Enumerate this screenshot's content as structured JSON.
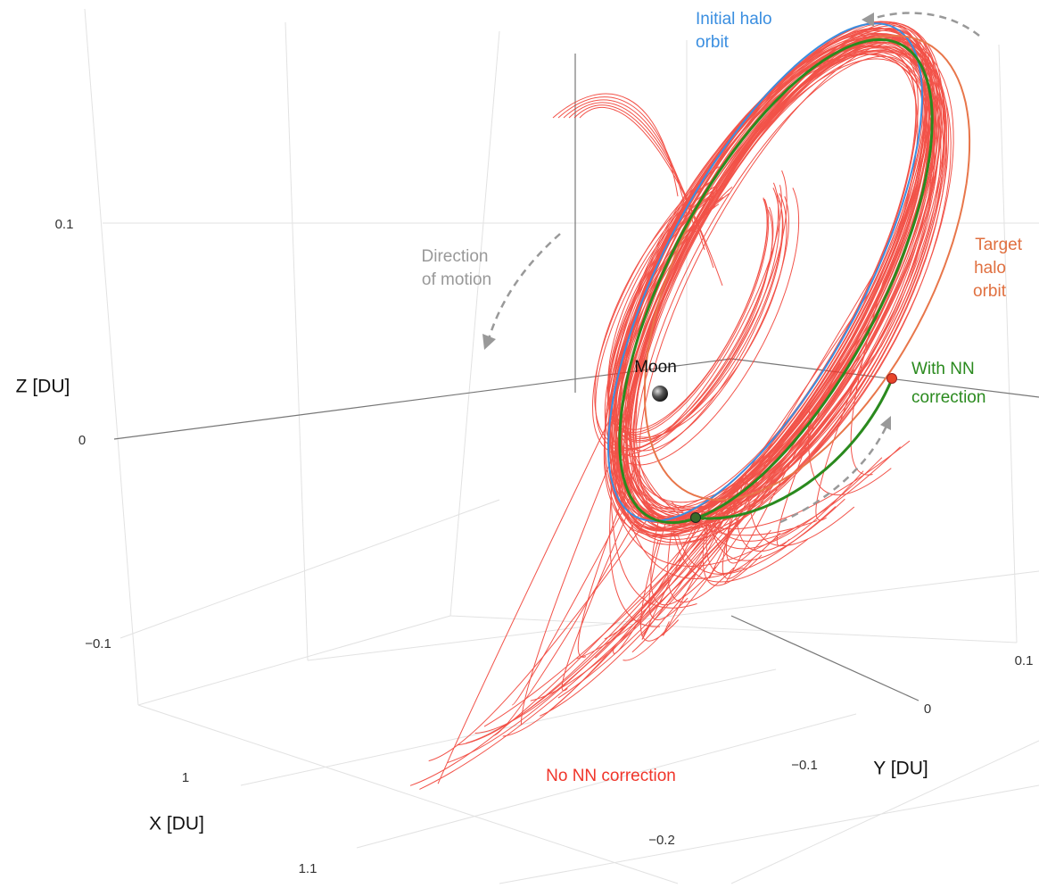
{
  "figure": {
    "axes": {
      "x": {
        "title": "X [DU]",
        "ticks": [
          "1",
          "1.1"
        ]
      },
      "y": {
        "title": "Y [DU]",
        "ticks": [
          "−0.2",
          "−0.1",
          "0",
          "0.1"
        ]
      },
      "z": {
        "title": "Z [DU]",
        "ticks": [
          "0.1",
          "0",
          "−0.1"
        ]
      }
    },
    "annotations": {
      "initial": [
        "Initial halo",
        "orbit"
      ],
      "target": [
        "Target",
        "halo",
        "orbit"
      ],
      "direction": [
        "Direction",
        "of motion"
      ],
      "moon": "Moon",
      "with_nn": [
        "With NN",
        "correction"
      ],
      "no_nn": "No NN correction"
    }
  }
}
